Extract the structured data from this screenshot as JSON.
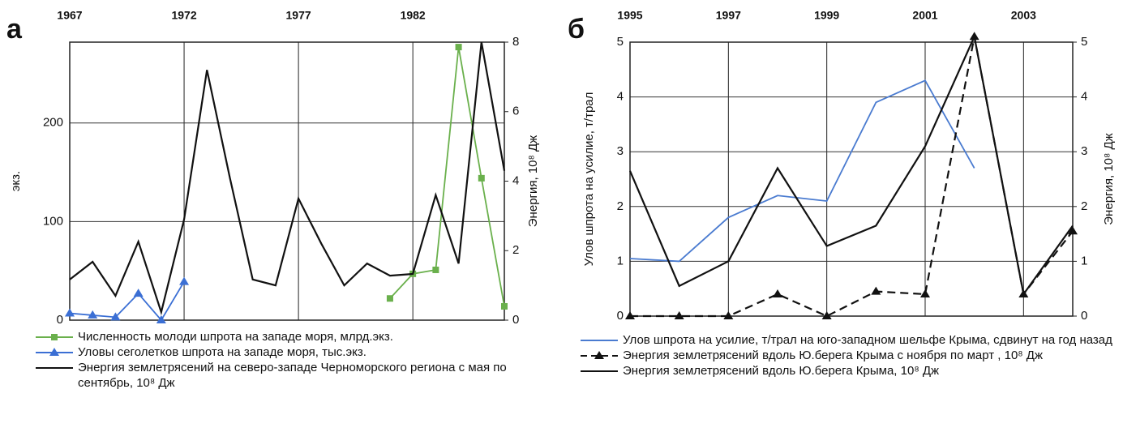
{
  "chart_data": [
    {
      "type": "line",
      "label": "а",
      "ylabel": "экз.",
      "y2label": "Энергия, 10⁸ Дж",
      "x": [
        1967,
        1968,
        1969,
        1970,
        1971,
        1972,
        1973,
        1974,
        1975,
        1976,
        1977,
        1978,
        1979,
        1980,
        1981,
        1982,
        1983,
        1984,
        1985,
        1986
      ],
      "xlim": [
        1967,
        1986
      ],
      "xticks": [
        1967,
        1972,
        1977,
        1982
      ],
      "ylim": [
        0,
        282
      ],
      "yticks": [
        0,
        100,
        200
      ],
      "y2lim": [
        0,
        8
      ],
      "y2ticks": [
        0,
        2,
        4,
        6,
        8
      ],
      "grid": true,
      "series": [
        {
          "name": "Численность молоди шпрота на западе моря, млрд.экз.",
          "color": "#6ab04c",
          "marker": "square",
          "dash": false,
          "values": [
            null,
            null,
            null,
            null,
            null,
            null,
            null,
            null,
            null,
            null,
            null,
            null,
            null,
            null,
            22,
            47,
            51,
            277,
            144,
            14
          ]
        },
        {
          "name": "Уловы сеголетков шпрота на западе моря, тыс.экз.",
          "color": "#3b6fd4",
          "marker": "triangle",
          "dash": false,
          "values": [
            7,
            5,
            3,
            27,
            0,
            39,
            null,
            null,
            null,
            null,
            null,
            null,
            null,
            null,
            null,
            null,
            null,
            null,
            null,
            null
          ]
        },
        {
          "name": "Энергия землетрясений на северо-западе Черноморского региона с мая по сентябрь, 10⁸ Дж",
          "color": "#111111",
          "marker": null,
          "dash": false,
          "axis": "y2",
          "values": [
            1.17,
            1.68,
            0.7,
            2.26,
            0.23,
            2.9,
            7.2,
            4.1,
            1.17,
            1.0,
            3.5,
            2.2,
            1.0,
            1.63,
            1.28,
            1.33,
            3.6,
            1.63,
            8,
            4.3
          ]
        }
      ]
    },
    {
      "type": "line",
      "label": "б",
      "ylabel": "Улов шпрота на усилие, т/трал",
      "y2label": "Энергия, 10⁸ Дж",
      "x": [
        1995,
        1996,
        1997,
        1998,
        1999,
        2000,
        2001,
        2002,
        2003,
        2004
      ],
      "xlim": [
        1995,
        2004
      ],
      "xticks": [
        1995,
        1997,
        1999,
        2001,
        2003
      ],
      "ylim": [
        0,
        5
      ],
      "yticks": [
        0,
        1,
        2,
        3,
        4,
        5
      ],
      "y2lim": [
        0,
        5
      ],
      "y2ticks": [
        0,
        1,
        2,
        3,
        4,
        5
      ],
      "grid": true,
      "series": [
        {
          "name": "Улов шпрота на усилие, т/трал на юго-западном шельфе Крыма, сдвинут на год назад",
          "color": "#4a7bd0",
          "marker": null,
          "dash": false,
          "values": [
            1.05,
            1.0,
            1.8,
            2.2,
            2.1,
            3.9,
            4.3,
            2.7,
            null,
            null
          ]
        },
        {
          "name": "Энергия землетрясений вдоль Ю.берега Крыма с ноября по март , 10⁸ Дж",
          "color": "#111111",
          "marker": "triangle",
          "dash": true,
          "axis": "y2",
          "values": [
            0,
            0,
            0,
            0.4,
            0,
            0.45,
            0.4,
            5.1,
            0.4,
            1.55
          ]
        },
        {
          "name": "Энергия землетрясений вдоль Ю.берега Крыма, 10⁸ Дж",
          "color": "#111111",
          "marker": null,
          "dash": false,
          "axis": "y2",
          "values": [
            2.65,
            0.55,
            1.0,
            2.7,
            1.28,
            1.65,
            3.1,
            5.1,
            0.4,
            1.65
          ]
        }
      ]
    }
  ]
}
